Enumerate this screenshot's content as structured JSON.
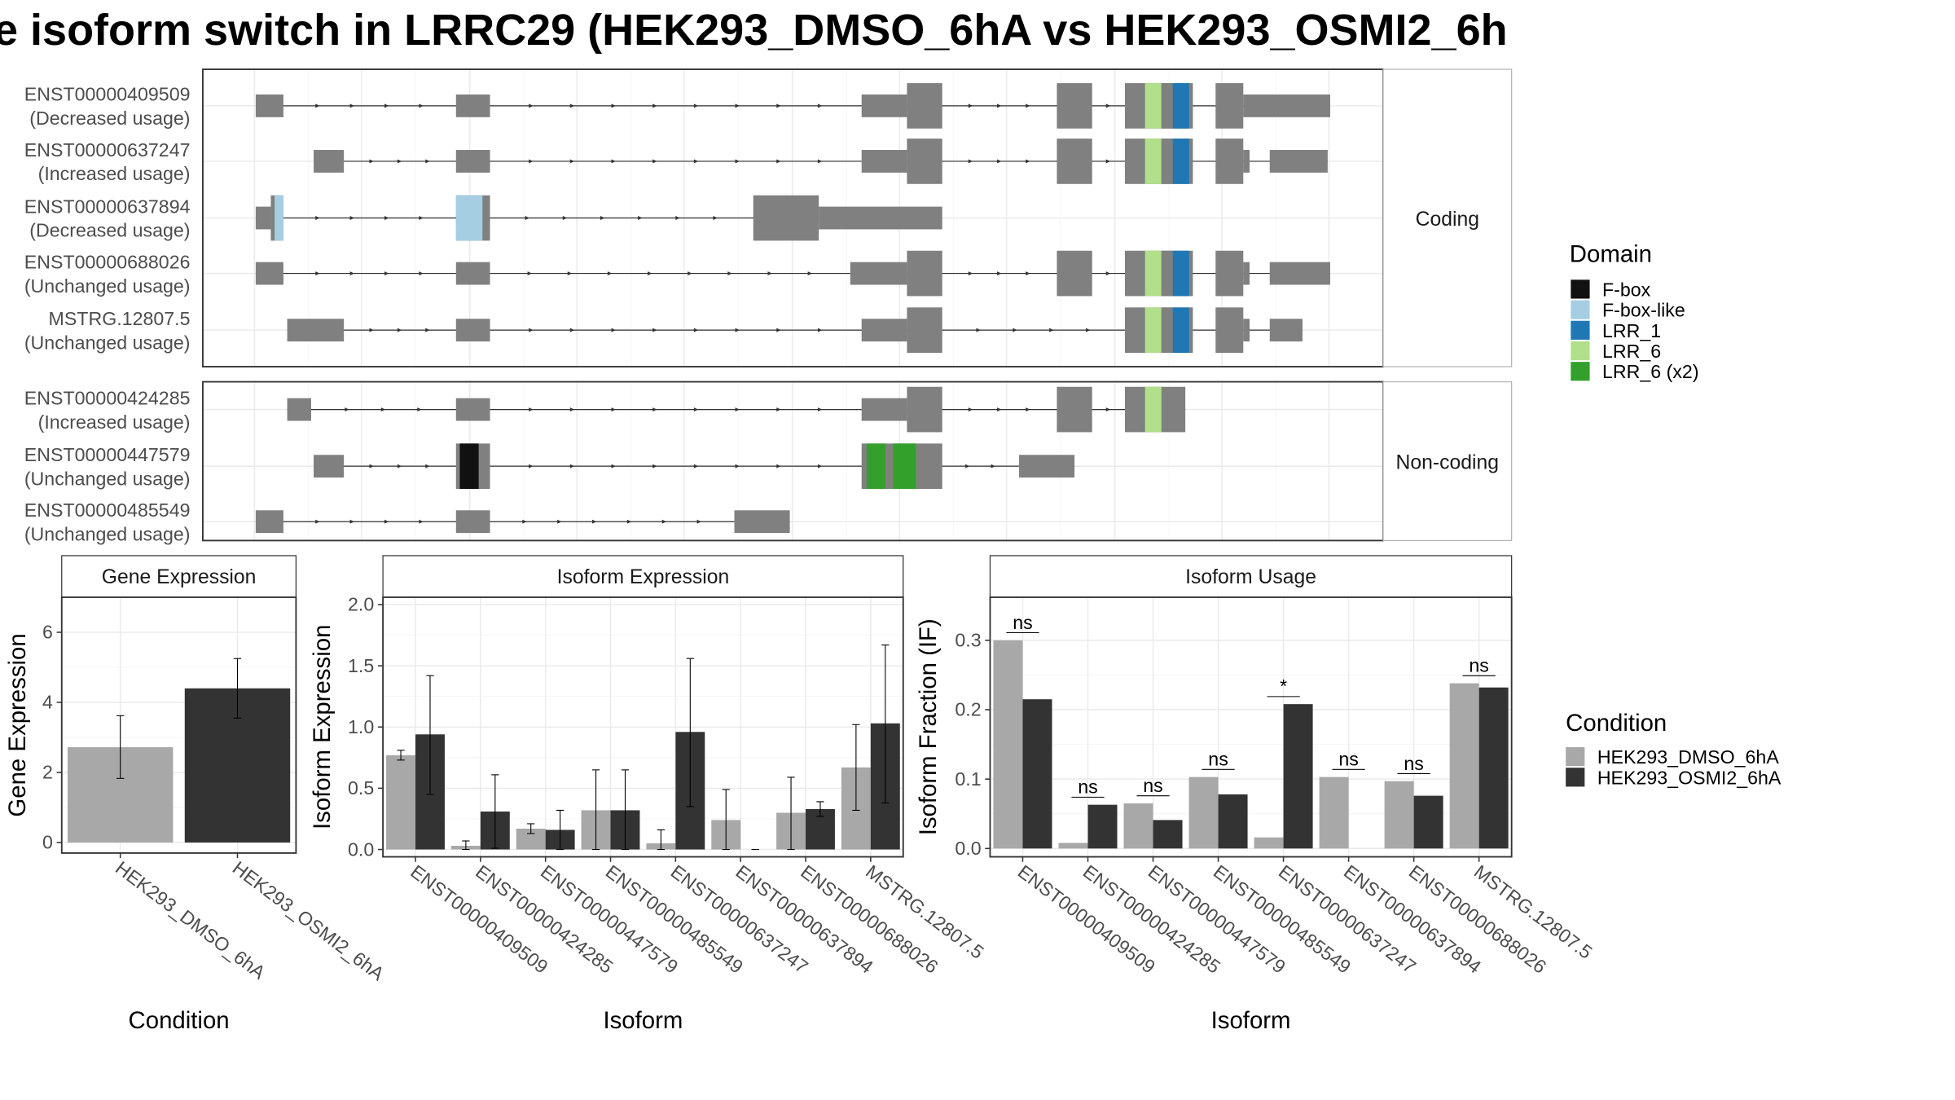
{
  "title": "e isoform switch in LRRC29 (HEK293_DMSO_6hA vs HEK293_OSMI2_6h",
  "structure": {
    "panels": [
      {
        "label": "Coding",
        "tracks": [
          {
            "id": "ENST00000409509",
            "usage": "(Decreased usage)",
            "exons": [
              [
                203,
                225,
                "s"
              ],
              [
                362,
                389,
                "s"
              ],
              [
                684,
                720,
                "s"
              ],
              [
                720,
                748,
                "t"
              ],
              [
                839,
                867,
                "t"
              ],
              [
                893,
                947,
                "t"
              ],
              [
                965,
                987,
                "t"
              ],
              [
                987,
                1056,
                "s"
              ]
            ],
            "domains": [
              [
                909,
                922,
                "LRR_6"
              ],
              [
                922,
                931,
                "gap"
              ],
              [
                931,
                944,
                "LRR_1"
              ]
            ]
          },
          {
            "id": "ENST00000637247",
            "usage": "(Increased usage)",
            "exons": [
              [
                249,
                273,
                "s"
              ],
              [
                362,
                389,
                "s"
              ],
              [
                684,
                720,
                "s"
              ],
              [
                720,
                748,
                "t"
              ],
              [
                839,
                867,
                "t"
              ],
              [
                893,
                947,
                "t"
              ],
              [
                965,
                987,
                "t"
              ],
              [
                987,
                992,
                "s"
              ],
              [
                1008,
                1054,
                "s"
              ]
            ],
            "domains": [
              [
                909,
                922,
                "LRR_6"
              ],
              [
                922,
                931,
                "gap"
              ],
              [
                931,
                944,
                "LRR_1"
              ]
            ]
          },
          {
            "id": "ENST00000637894",
            "usage": "(Decreased usage)",
            "exons": [
              [
                203,
                215,
                "s"
              ],
              [
                215,
                225,
                "t"
              ],
              [
                362,
                389,
                "t"
              ],
              [
                598,
                650,
                "t"
              ],
              [
                650,
                748,
                "s"
              ]
            ],
            "domains": [
              [
                218,
                225,
                "F-box-like"
              ],
              [
                362,
                383,
                "F-box-like"
              ]
            ]
          },
          {
            "id": "ENST00000688026",
            "usage": "(Unchanged usage)",
            "exons": [
              [
                203,
                225,
                "s"
              ],
              [
                362,
                389,
                "s"
              ],
              [
                675,
                720,
                "s"
              ],
              [
                720,
                748,
                "t"
              ],
              [
                839,
                867,
                "t"
              ],
              [
                893,
                947,
                "t"
              ],
              [
                965,
                987,
                "t"
              ],
              [
                987,
                992,
                "s"
              ],
              [
                1008,
                1056,
                "s"
              ]
            ],
            "domains": [
              [
                909,
                922,
                "LRR_6"
              ],
              [
                922,
                931,
                "gap"
              ],
              [
                931,
                944,
                "LRR_1"
              ]
            ]
          },
          {
            "id": "MSTRG.12807.5",
            "usage": "(Unchanged usage)",
            "exons": [
              [
                228,
                273,
                "s"
              ],
              [
                362,
                389,
                "s"
              ],
              [
                684,
                720,
                "s"
              ],
              [
                720,
                748,
                "t"
              ],
              [
                893,
                947,
                "t"
              ],
              [
                965,
                987,
                "t"
              ],
              [
                987,
                992,
                "s"
              ],
              [
                1008,
                1034,
                "s"
              ]
            ],
            "domains": [
              [
                909,
                922,
                "LRR_6"
              ],
              [
                922,
                931,
                "gap"
              ],
              [
                931,
                944,
                "LRR_1"
              ]
            ]
          }
        ]
      },
      {
        "label": "Non-coding",
        "tracks": [
          {
            "id": "ENST00000424285",
            "usage": "(Increased usage)",
            "exons": [
              [
                228,
                247,
                "s"
              ],
              [
                362,
                389,
                "s"
              ],
              [
                684,
                720,
                "s"
              ],
              [
                720,
                748,
                "t"
              ],
              [
                839,
                867,
                "t"
              ],
              [
                893,
                941,
                "t"
              ]
            ],
            "domains": [
              [
                909,
                922,
                "LRR_6"
              ]
            ]
          },
          {
            "id": "ENST00000447579",
            "usage": "(Unchanged usage)",
            "exons": [
              [
                249,
                273,
                "s"
              ],
              [
                362,
                389,
                "t"
              ],
              [
                684,
                748,
                "t"
              ],
              [
                809,
                853,
                "s"
              ]
            ],
            "domains": [
              [
                365,
                380,
                "F-box"
              ],
              [
                688,
                703,
                "LRR_6 (x2)"
              ],
              [
                709,
                727,
                "LRR_6 (x2)"
              ]
            ]
          },
          {
            "id": "ENST00000485549",
            "usage": "(Unchanged usage)",
            "exons": [
              [
                203,
                225,
                "s"
              ],
              [
                362,
                389,
                "s"
              ],
              [
                583,
                627,
                "s"
              ]
            ],
            "domains": []
          }
        ]
      }
    ]
  },
  "legend_domain": {
    "title": "Domain",
    "items": [
      {
        "label": "F-box",
        "color": "#111111"
      },
      {
        "label": "F-box-like",
        "color": "#a6cee3"
      },
      {
        "label": "LRR_1",
        "color": "#1f78b4"
      },
      {
        "label": "LRR_6",
        "color": "#b2df8a"
      },
      {
        "label": "LRR_6 (x2)",
        "color": "#33a02c"
      }
    ]
  },
  "legend_condition": {
    "title": "Condition",
    "items": [
      {
        "label": "HEK293_DMSO_6hA",
        "color": "#a8a8a8"
      },
      {
        "label": "HEK293_OSMI2_6hA",
        "color": "#333333"
      }
    ]
  },
  "chart_data": [
    {
      "type": "bar",
      "title": "Gene Expression",
      "xlabel": "Condition",
      "ylabel": "Gene Expression",
      "categories": [
        "HEK293_DMSO_6hA",
        "HEK293_OSMI2_6hA"
      ],
      "values": [
        2.72,
        4.4
      ],
      "errors": [
        [
          1.83,
          3.62
        ],
        [
          3.55,
          5.25
        ]
      ],
      "ylim": [
        -0.3,
        7.0
      ],
      "yticks": [
        0,
        2,
        4,
        6
      ]
    },
    {
      "type": "bar",
      "title": "Isoform Expression",
      "xlabel": "Isoform",
      "ylabel": "Isoform Expression",
      "categories": [
        "ENST00000409509",
        "ENST00000424285",
        "ENST00000447579",
        "ENST00000485549",
        "ENST00000637247",
        "ENST00000637894",
        "ENST00000688026",
        "MSTRG.12807.5"
      ],
      "series": [
        {
          "name": "HEK293_DMSO_6hA",
          "values": [
            0.77,
            0.03,
            0.17,
            0.32,
            0.05,
            0.24,
            0.3,
            0.67
          ],
          "errors": [
            [
              0.73,
              0.81
            ],
            [
              0.0,
              0.07
            ],
            [
              0.13,
              0.21
            ],
            [
              0.0,
              0.65
            ],
            [
              0.0,
              0.16
            ],
            [
              0.0,
              0.49
            ],
            [
              0.0,
              0.59
            ],
            [
              0.32,
              1.02
            ]
          ]
        },
        {
          "name": "HEK293_OSMI2_6hA",
          "values": [
            0.94,
            0.31,
            0.16,
            0.32,
            0.96,
            0.0,
            0.33,
            1.03
          ],
          "errors": [
            [
              0.45,
              1.42
            ],
            [
              0.01,
              0.61
            ],
            [
              0.0,
              0.32
            ],
            [
              0.0,
              0.65
            ],
            [
              0.35,
              1.56
            ],
            [
              0.0,
              0.0
            ],
            [
              0.27,
              0.39
            ],
            [
              0.38,
              1.67
            ]
          ]
        }
      ],
      "ylim": [
        -0.06,
        2.06
      ],
      "yticks": [
        0.0,
        0.5,
        1.0,
        1.5,
        2.0
      ]
    },
    {
      "type": "bar",
      "title": "Isoform Usage",
      "xlabel": "Isoform",
      "ylabel": "Isoform Fraction (IF)",
      "categories": [
        "ENST00000409509",
        "ENST00000424285",
        "ENST00000447579",
        "ENST00000485549",
        "ENST00000637247",
        "ENST00000637894",
        "ENST00000688026",
        "MSTRG.12807.5"
      ],
      "series": [
        {
          "name": "HEK293_DMSO_6hA",
          "values": [
            0.3,
            0.008,
            0.065,
            0.103,
            0.016,
            0.103,
            0.097,
            0.238
          ]
        },
        {
          "name": "HEK293_OSMI2_6hA",
          "values": [
            0.215,
            0.063,
            0.041,
            0.078,
            0.208,
            0.0,
            0.076,
            0.232
          ]
        }
      ],
      "significance": [
        "ns",
        "ns",
        "ns",
        "ns",
        "*",
        "ns",
        "ns",
        "ns"
      ],
      "ylim": [
        -0.012,
        0.362
      ],
      "yticks": [
        0.0,
        0.1,
        0.2,
        0.3
      ]
    }
  ]
}
